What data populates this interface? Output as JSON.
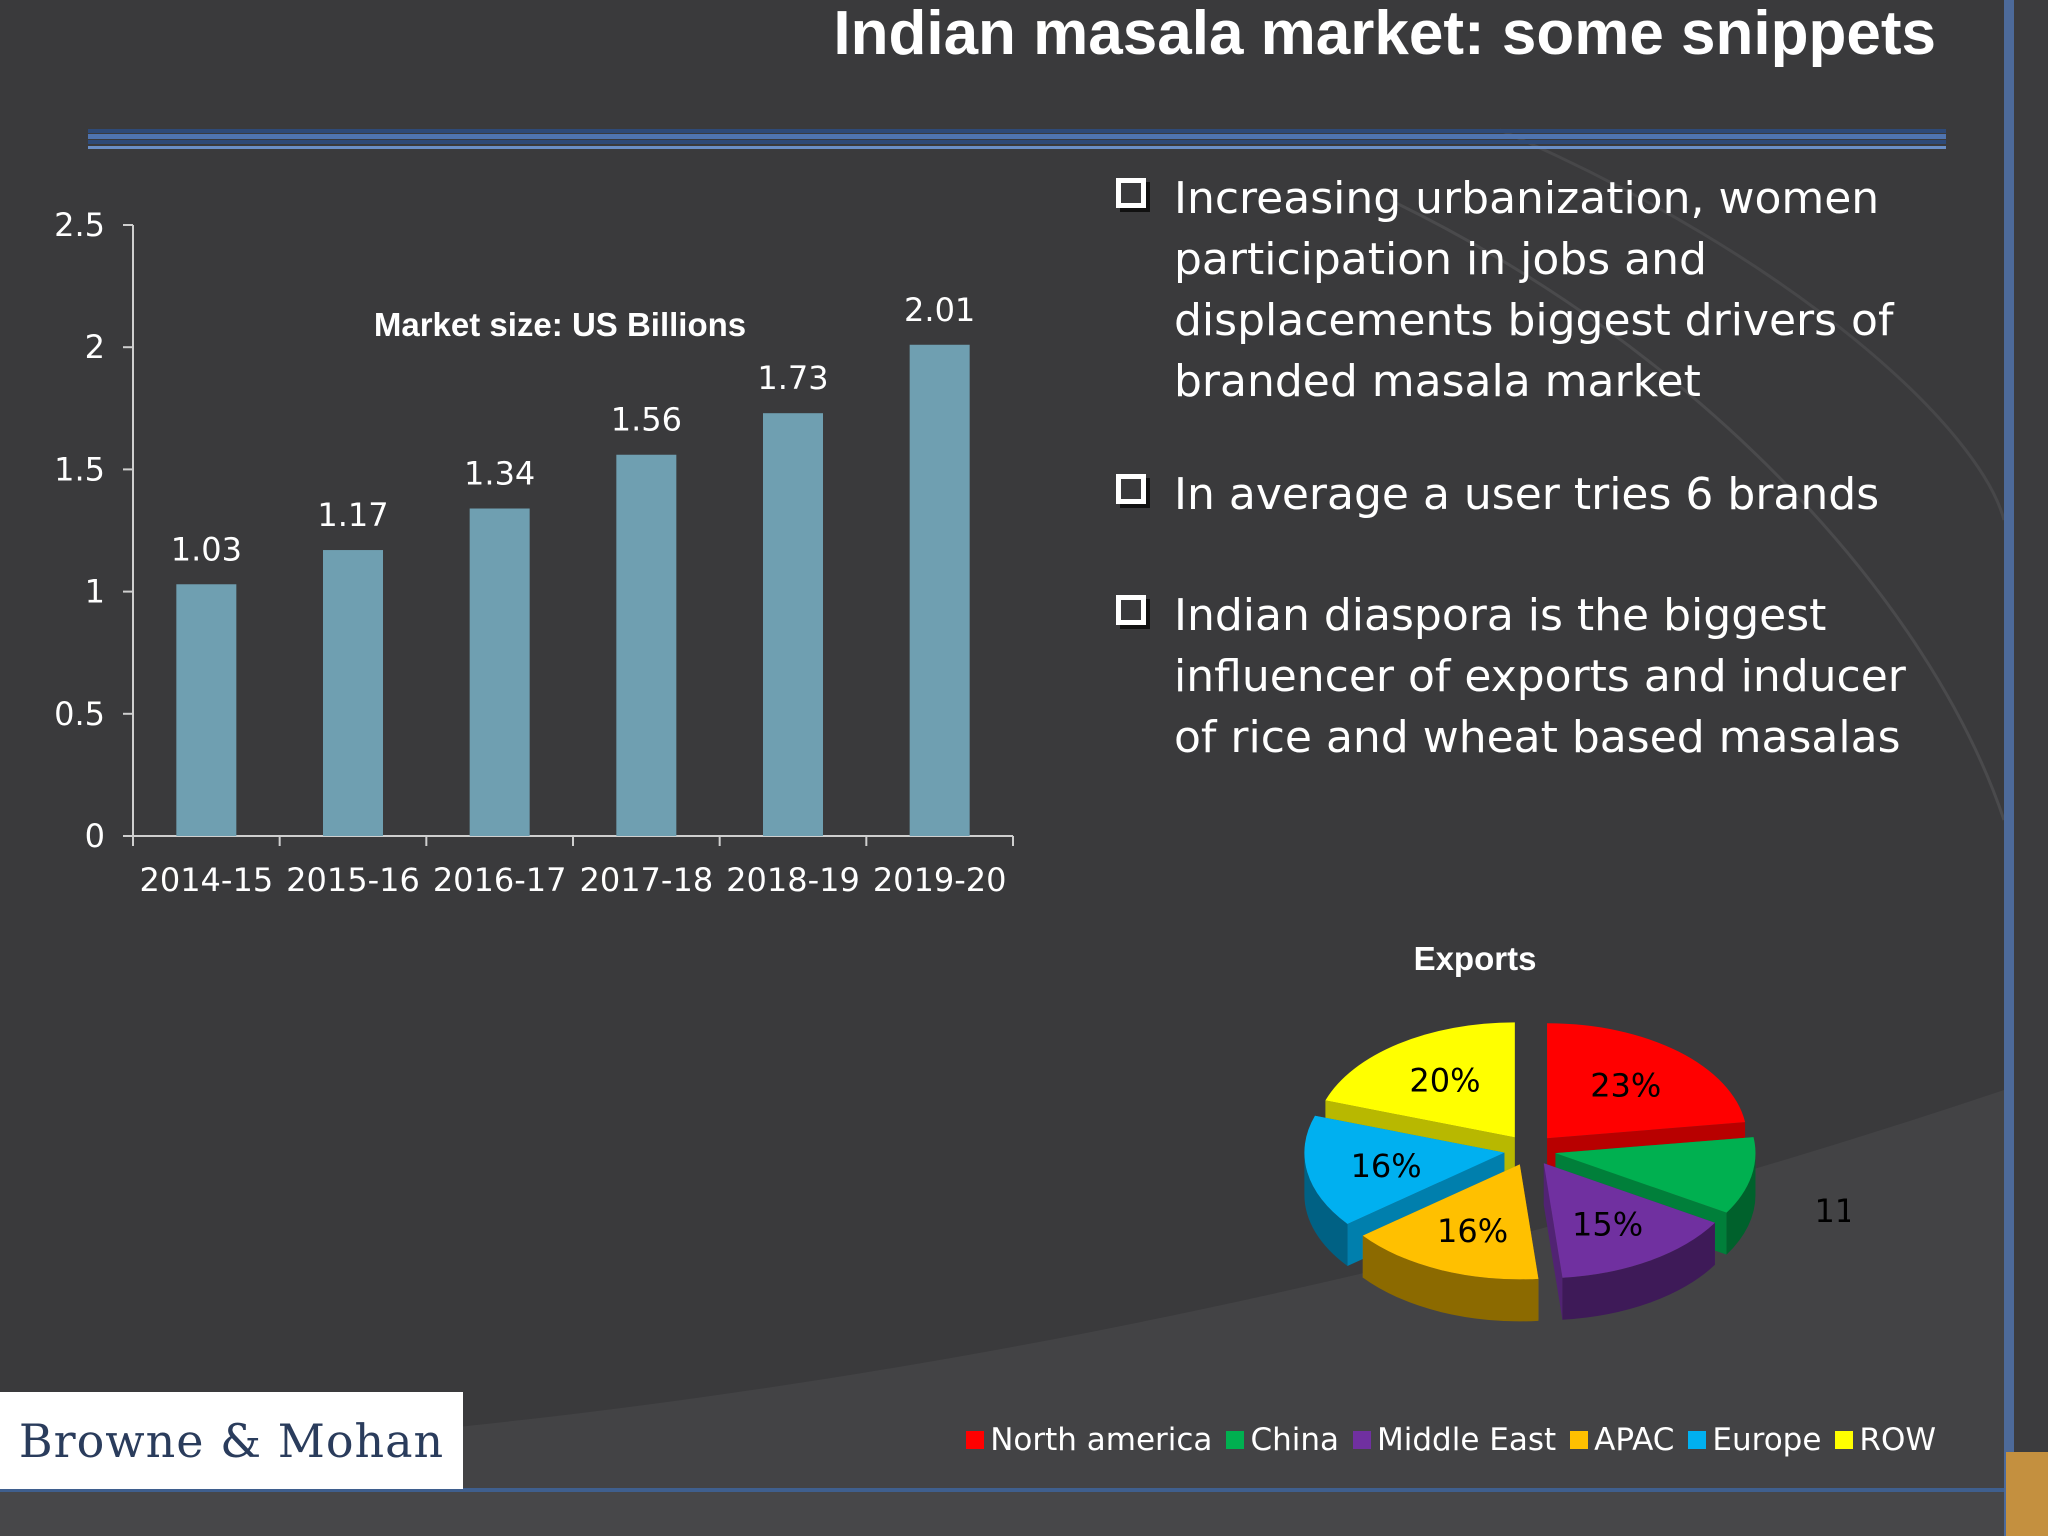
{
  "title": "Indian masala market: some snippets",
  "bullets": [
    "Increasing urbanization, women participation in jobs and displacements biggest drivers of branded masala market",
    "In average a user tries 6 brands",
    "Indian diaspora is the biggest influencer of exports and inducer of rice and wheat based masalas"
  ],
  "logo": "Browne & Mohan",
  "colors": {
    "background": "#3a3a3c",
    "bar": "#6f9fb1",
    "accent_blue": "#4d6a9a",
    "corner": "#c4903f"
  },
  "chart_data": [
    {
      "type": "bar",
      "title": "Market size: US Billions",
      "categories": [
        "2014-15",
        "2015-16",
        "2016-17",
        "2017-18",
        "2018-19",
        "2019-20"
      ],
      "values": [
        1.03,
        1.17,
        1.34,
        1.56,
        1.73,
        2.01
      ],
      "data_labels": [
        "1.03",
        "1.17",
        "1.34",
        "1.56",
        "1.73",
        "2.01"
      ],
      "ylim": [
        0,
        2.5
      ],
      "yticks": [
        "0",
        "0.5",
        "1",
        "1.5",
        "2",
        "2.5"
      ],
      "xlabel": "",
      "ylabel": "",
      "grid": false
    },
    {
      "type": "pie",
      "title": "Exports",
      "style": "3d-exploded",
      "labels": [
        "North america",
        "China",
        "Middle East",
        "APAC",
        "Europe",
        "ROW"
      ],
      "values": [
        23,
        11,
        15,
        16,
        16,
        20
      ],
      "data_labels": [
        "23%",
        "11%",
        "15%",
        "16%",
        "16%",
        "20%"
      ],
      "colors": [
        "#ff0000",
        "#00b050",
        "#7030a0",
        "#ffc000",
        "#00b0f0",
        "#ffff00"
      ],
      "legend_position": "bottom"
    }
  ]
}
